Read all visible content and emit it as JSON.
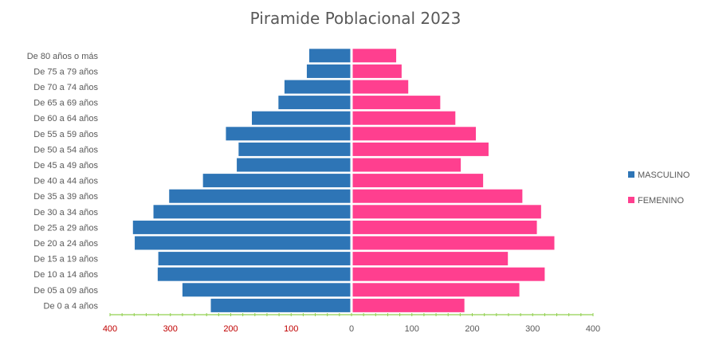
{
  "chart_data": {
    "type": "bar",
    "orientation": "horizontal",
    "title": "Piramide Poblacional 2023",
    "categories": [
      "De 0 a 4 años",
      "De 05 a 09 años",
      "De 10 a 14 años",
      "De 15 a 19 años",
      "De 20 a 24 años",
      "De 25 a 29 años",
      "De 30 a 34 años",
      "De 35 a 39 años",
      "De 40 a 44 años",
      "De 45 a 49 años",
      "De 50 a 54 años",
      "De 55 a 59 años",
      "De 60 a 64 años",
      "De 65 a 69 años",
      "De 70 a 74 años",
      "De 75 a 79 años",
      "De 80 años o más"
    ],
    "series": [
      {
        "name": "MASCULINO",
        "color": "#2E75B6",
        "values": [
          -233,
          -280,
          -321,
          -320,
          -359,
          -362,
          -328,
          -302,
          -246,
          -190,
          -187,
          -208,
          -165,
          -121,
          -111,
          -74,
          -70
        ]
      },
      {
        "name": "FEMENINO",
        "color": "#FF3F8F",
        "values": [
          187,
          278,
          320,
          259,
          336,
          307,
          314,
          283,
          218,
          181,
          227,
          206,
          172,
          147,
          94,
          83,
          74
        ]
      }
    ],
    "xticks": [
      "400",
      "300",
      "200",
      "100",
      "0",
      "100",
      "200",
      "300",
      "400"
    ],
    "xlim": [
      -400,
      400
    ],
    "legend": "right",
    "grid": false,
    "tick_label_colors": {
      "negative": "#C00000",
      "zero_and_positive": "#595959"
    },
    "axis_color": "#92D050"
  }
}
